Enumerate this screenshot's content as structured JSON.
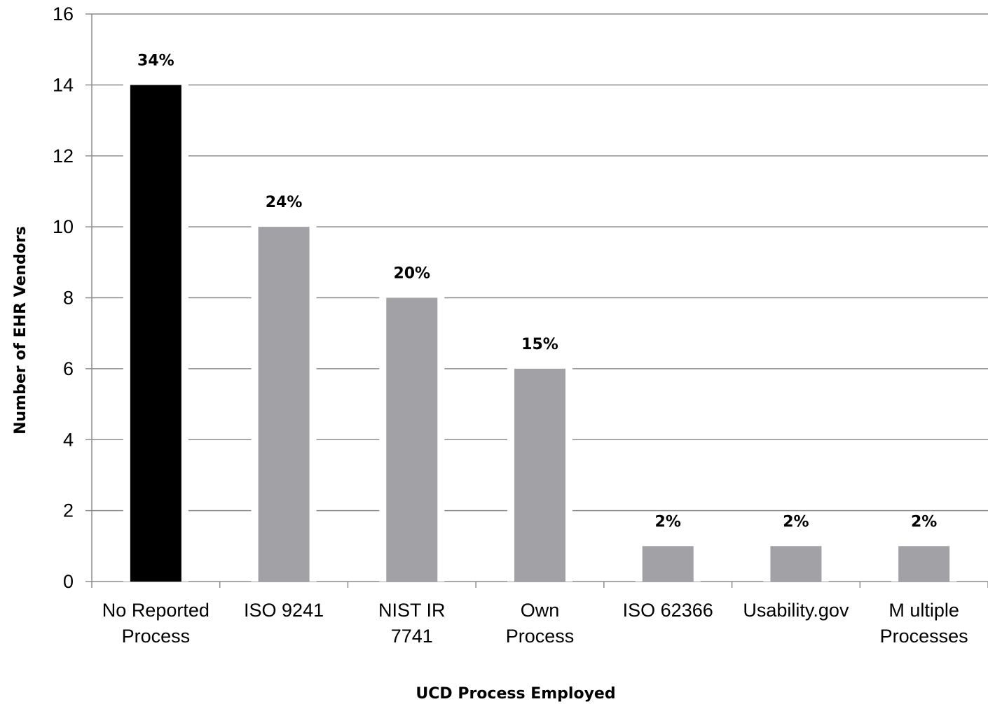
{
  "chart_data": {
    "type": "bar",
    "categories": [
      [
        "No Reported",
        "Process"
      ],
      [
        "ISO 9241"
      ],
      [
        "NIST IR",
        "7741"
      ],
      [
        "Own",
        "Process"
      ],
      [
        "ISO 62366"
      ],
      [
        "Usability.gov"
      ],
      [
        "M ultiple",
        "Processes"
      ]
    ],
    "values": [
      14,
      10,
      8,
      6,
      1,
      1,
      1
    ],
    "data_labels": [
      "34%",
      "24%",
      "20%",
      "15%",
      "2%",
      "2%",
      "2%"
    ],
    "bar_colors": [
      "#000000",
      "#a2a1a6",
      "#a2a1a6",
      "#a2a1a6",
      "#a2a1a6",
      "#a2a1a6",
      "#a2a1a6"
    ],
    "ylim": [
      0,
      16
    ],
    "yticks": [
      0,
      2,
      4,
      6,
      8,
      10,
      12,
      14,
      16
    ],
    "xlabel": "UCD Process Employed",
    "ylabel": "Number of EHR Vendors",
    "grid": true,
    "gridline_color": "#8c8c8c"
  }
}
